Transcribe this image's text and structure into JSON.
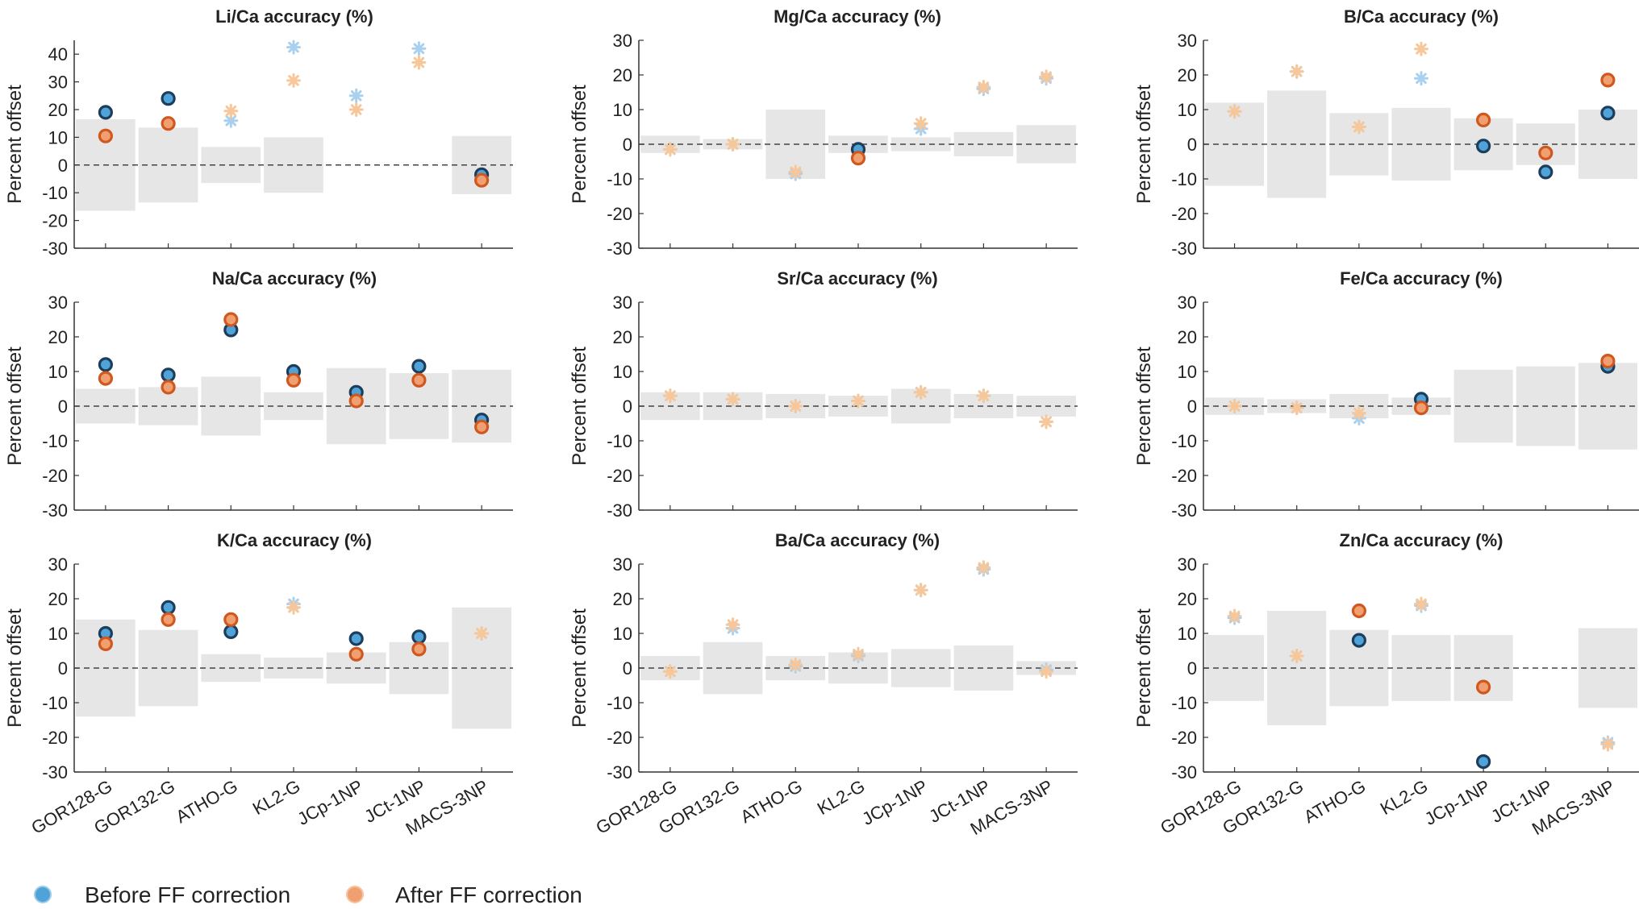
{
  "categories": [
    "GOR128-G",
    "GOR132-G",
    "ATHO-G",
    "KL2-G",
    "JCp-1NP",
    "JCt-1NP",
    "MACS-3NP"
  ],
  "ylabel": "Percent offset",
  "legend": {
    "before_label": "Before FF correction",
    "after_label": "After FF correction"
  },
  "colors": {
    "before_fill": "#4fa3d8",
    "before_edge": "#1c3d5c",
    "after_fill": "#f0a070",
    "after_edge": "#d0581f",
    "before_star": "#a9d1ef",
    "after_star": "#f7c79a",
    "band": "#e6e6e6"
  },
  "chart_data": [
    {
      "type": "scatter",
      "title": "Li/Ca accuracy (%)",
      "ylim": [
        -30,
        45
      ],
      "yticks": [
        -30,
        -20,
        -10,
        0,
        10,
        20,
        30,
        40
      ],
      "uncertainty": [
        16.5,
        13.5,
        6.5,
        10,
        0,
        0,
        10.5
      ],
      "series": [
        {
          "name": "Before FF correction",
          "values": [
            19,
            24,
            16,
            42.5,
            25,
            42,
            -3.5
          ],
          "markers": [
            "o",
            "o",
            "*",
            "*",
            "*",
            "*",
            "o"
          ]
        },
        {
          "name": "After FF correction",
          "values": [
            10.5,
            15,
            19.5,
            30.5,
            20,
            37,
            -5.5
          ],
          "markers": [
            "o",
            "o",
            "*",
            "*",
            "*",
            "*",
            "o"
          ]
        }
      ]
    },
    {
      "type": "scatter",
      "title": "Mg/Ca accuracy (%)",
      "ylim": [
        -30,
        30
      ],
      "yticks": [
        -30,
        -20,
        -10,
        0,
        10,
        20,
        30
      ],
      "uncertainty": [
        2.5,
        1.5,
        10,
        2.5,
        2,
        3.5,
        5.5
      ],
      "series": [
        {
          "name": "Before FF correction",
          "values": [
            -1.5,
            0,
            -8.5,
            -1.5,
            4.5,
            16,
            19
          ],
          "markers": [
            "*",
            "*",
            "*",
            "o",
            "*",
            "*",
            "*"
          ]
        },
        {
          "name": "After FF correction",
          "values": [
            -1.5,
            0,
            -8,
            -4,
            6,
            16.5,
            19.5
          ],
          "markers": [
            "*",
            "*",
            "*",
            "o",
            "*",
            "*",
            "*"
          ]
        }
      ]
    },
    {
      "type": "scatter",
      "title": "B/Ca accuracy (%)",
      "ylim": [
        -30,
        30
      ],
      "yticks": [
        -30,
        -20,
        -10,
        0,
        10,
        20,
        30
      ],
      "uncertainty": [
        12,
        15.5,
        9,
        10.5,
        7.5,
        6,
        10
      ],
      "series": [
        {
          "name": "Before FF correction",
          "values": [
            9.5,
            21,
            5,
            19,
            -0.5,
            -8,
            9
          ],
          "markers": [
            "*",
            "*",
            "*",
            "*",
            "o",
            "o",
            "o"
          ]
        },
        {
          "name": "After FF correction",
          "values": [
            9.5,
            21,
            5,
            27.5,
            7,
            -2.5,
            18.5
          ],
          "markers": [
            "*",
            "*",
            "*",
            "*",
            "o",
            "o",
            "o"
          ]
        }
      ]
    },
    {
      "type": "scatter",
      "title": "Na/Ca accuracy (%)",
      "ylim": [
        -30,
        30
      ],
      "yticks": [
        -30,
        -20,
        -10,
        0,
        10,
        20,
        30
      ],
      "uncertainty": [
        5,
        5.5,
        8.5,
        4,
        11,
        9.5,
        10.5
      ],
      "series": [
        {
          "name": "Before FF correction",
          "values": [
            12,
            9,
            22,
            10,
            4,
            11.5,
            -4
          ],
          "markers": [
            "o",
            "o",
            "o",
            "o",
            "o",
            "o",
            "o"
          ]
        },
        {
          "name": "After FF correction",
          "values": [
            8,
            5.5,
            25,
            7.5,
            1.5,
            7.5,
            -6
          ],
          "markers": [
            "o",
            "o",
            "o",
            "o",
            "o",
            "o",
            "o"
          ]
        }
      ]
    },
    {
      "type": "scatter",
      "title": "Sr/Ca accuracy (%)",
      "ylim": [
        -30,
        30
      ],
      "yticks": [
        -30,
        -20,
        -10,
        0,
        10,
        20,
        30
      ],
      "uncertainty": [
        4,
        4,
        3.5,
        3,
        5,
        3.5,
        3
      ],
      "series": [
        {
          "name": "Before FF correction",
          "values": [
            3,
            2,
            0,
            1.5,
            4,
            3,
            -4.5
          ],
          "markers": [
            "*",
            "*",
            "*",
            "*",
            "*",
            "*",
            "*"
          ]
        },
        {
          "name": "After FF correction",
          "values": [
            3,
            2,
            0,
            1.5,
            4,
            3,
            -4.5
          ],
          "markers": [
            "*",
            "*",
            "*",
            "*",
            "*",
            "*",
            "*"
          ]
        }
      ]
    },
    {
      "type": "scatter",
      "title": "Fe/Ca accuracy (%)",
      "ylim": [
        -30,
        30
      ],
      "yticks": [
        -30,
        -20,
        -10,
        0,
        10,
        20,
        30
      ],
      "uncertainty": [
        2.5,
        2,
        3.5,
        2.5,
        10.5,
        11.5,
        12.5
      ],
      "series": [
        {
          "name": "Before FF correction",
          "values": [
            0,
            -0.5,
            -3.5,
            2,
            null,
            null,
            11.5
          ],
          "markers": [
            "*",
            "*",
            "*",
            "o",
            "o",
            "o",
            "o"
          ]
        },
        {
          "name": "After FF correction",
          "values": [
            0,
            -0.5,
            -2,
            -0.5,
            null,
            null,
            13
          ],
          "markers": [
            "*",
            "*",
            "*",
            "o",
            "o",
            "o",
            "o"
          ]
        }
      ]
    },
    {
      "type": "scatter",
      "title": "K/Ca accuracy (%)",
      "ylim": [
        -30,
        30
      ],
      "yticks": [
        -30,
        -20,
        -10,
        0,
        10,
        20,
        30
      ],
      "uncertainty": [
        14,
        11,
        4,
        3,
        4.5,
        7.5,
        17.5
      ],
      "series": [
        {
          "name": "Before FF correction",
          "values": [
            10,
            17.5,
            10.5,
            18.5,
            8.5,
            9,
            10
          ],
          "markers": [
            "o",
            "o",
            "o",
            "*",
            "o",
            "o",
            "*"
          ]
        },
        {
          "name": "After FF correction",
          "values": [
            7,
            14,
            14,
            17.5,
            4,
            5.5,
            10
          ],
          "markers": [
            "o",
            "o",
            "o",
            "*",
            "o",
            "o",
            "*"
          ]
        }
      ]
    },
    {
      "type": "scatter",
      "title": "Ba/Ca accuracy (%)",
      "ylim": [
        -30,
        30
      ],
      "yticks": [
        -30,
        -20,
        -10,
        0,
        10,
        20,
        30
      ],
      "uncertainty": [
        3.5,
        7.5,
        3.5,
        4.5,
        5.5,
        6.5,
        2
      ],
      "series": [
        {
          "name": "Before FF correction",
          "values": [
            -1,
            11.5,
            0.5,
            3.5,
            22.5,
            28.5,
            -0.5
          ],
          "markers": [
            "*",
            "*",
            "*",
            "*",
            "*",
            "*",
            "*"
          ]
        },
        {
          "name": "After FF correction",
          "values": [
            -1,
            12.5,
            1,
            4,
            22.5,
            29,
            -1
          ],
          "markers": [
            "*",
            "*",
            "*",
            "*",
            "*",
            "*",
            "*"
          ]
        }
      ]
    },
    {
      "type": "scatter",
      "title": "Zn/Ca accuracy (%)",
      "ylim": [
        -30,
        30
      ],
      "yticks": [
        -30,
        -20,
        -10,
        0,
        10,
        20,
        30
      ],
      "uncertainty": [
        9.5,
        16.5,
        11,
        9.5,
        9.5,
        0,
        11.5
      ],
      "series": [
        {
          "name": "Before FF correction",
          "values": [
            14.5,
            3.5,
            8,
            18,
            -27,
            null,
            -21.5
          ],
          "markers": [
            "*",
            "*",
            "o",
            "*",
            "o",
            "o",
            "*"
          ]
        },
        {
          "name": "After FF correction",
          "values": [
            15,
            3.5,
            16.5,
            18.5,
            -5.5,
            null,
            -22
          ],
          "markers": [
            "*",
            "*",
            "o",
            "*",
            "o",
            "o",
            "*"
          ]
        }
      ]
    }
  ]
}
